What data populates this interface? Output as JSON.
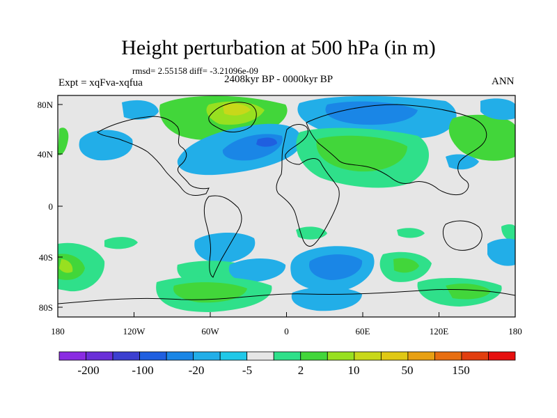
{
  "title": "Height perturbation at 500 hPa (in m)",
  "stats": "rmsd= 2.55158 diff= -3.21096e-09",
  "left_label": "Expt = xqFva-xqfua",
  "center_label": "2408kyr BP - 0000kyr BP",
  "right_label": "ANN",
  "lat_ticks": [
    "80N",
    "40N",
    "0",
    "40S",
    "80S"
  ],
  "lon_ticks": [
    "180",
    "120W",
    "60W",
    "0",
    "60E",
    "120E",
    "180"
  ],
  "colorbar": {
    "colors": [
      "#8a2be2",
      "#6a2fd8",
      "#3c3fd0",
      "#1f5fe0",
      "#1a86e6",
      "#22aee8",
      "#20c8e8",
      "#e6e6e6",
      "#2fe08a",
      "#42d63a",
      "#98e020",
      "#c8d81a",
      "#e0c814",
      "#e8a012",
      "#e86e10",
      "#e23e0e",
      "#e60f0e"
    ],
    "labels": [
      "-200",
      "-100",
      "-20",
      "-5",
      "2",
      "10",
      "50",
      "150"
    ]
  },
  "colors": {
    "background_map": "#e6e6e6",
    "negative_light": "#22aee8",
    "negative_mid": "#1a86e6",
    "negative_dark": "#1f5fe0",
    "positive_light": "#2fe08a",
    "positive_mid": "#42d63a",
    "positive_strong": "#98e020"
  },
  "map_regions": [
    {
      "name": "greenland-positive",
      "sign": "positive",
      "strength": "strong"
    },
    {
      "name": "north-atlantic-negative",
      "sign": "negative",
      "strength": "dark"
    },
    {
      "name": "siberia-negative",
      "sign": "negative",
      "strength": "mid"
    },
    {
      "name": "central-asia-positive",
      "sign": "positive",
      "strength": "mid"
    },
    {
      "name": "south-atlantic-negative",
      "sign": "negative",
      "strength": "mid"
    },
    {
      "name": "south-indian-ocean-negative",
      "sign": "negative",
      "strength": "dark"
    },
    {
      "name": "south-pacific-positive",
      "sign": "positive",
      "strength": "mid"
    }
  ]
}
